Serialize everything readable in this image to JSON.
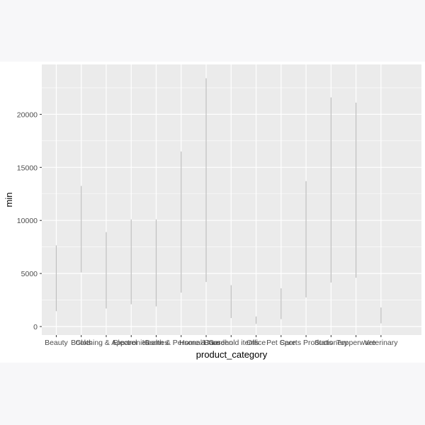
{
  "chart_data": {
    "type": "linerange",
    "xlabel": "product_category",
    "ylabel": "min",
    "ylim": [
      -800,
      24700
    ],
    "y_ticks": [
      0,
      5000,
      10000,
      15000,
      20000
    ],
    "y_tick_labels": [
      "0",
      "5000",
      "10000",
      "15000",
      "20000"
    ],
    "grid": true,
    "legend": "none",
    "categories": [
      "Beauty",
      "Books",
      "Clothing & Apparel",
      "Electronics",
      "Games",
      "Health & Personal Care",
      "Home & Garden",
      "Household items",
      "Office",
      "Pet Care",
      "Sports Products",
      "Stationery",
      "Tupperware",
      "Veterinary"
    ],
    "ranges": [
      {
        "low": 1450,
        "high": 7650
      },
      {
        "low": 5100,
        "high": 13250
      },
      {
        "low": 1700,
        "high": 8900
      },
      {
        "low": 2100,
        "high": 10100
      },
      {
        "low": 1900,
        "high": 10100
      },
      {
        "low": 3200,
        "high": 16500
      },
      {
        "low": 4200,
        "high": 23400
      },
      {
        "low": 800,
        "high": 3900
      },
      {
        "low": 250,
        "high": 950
      },
      {
        "low": 700,
        "high": 3600
      },
      {
        "low": 2750,
        "high": 13700
      },
      {
        "low": 4150,
        "high": 21600
      },
      {
        "low": 4600,
        "high": 21100
      },
      {
        "low": 300,
        "high": 1800
      }
    ],
    "colors": {
      "panel": "#ebebeb",
      "grid": "#ffffff",
      "range": "#bebebe",
      "text": "#4d4d4d",
      "title": "#000000"
    }
  }
}
